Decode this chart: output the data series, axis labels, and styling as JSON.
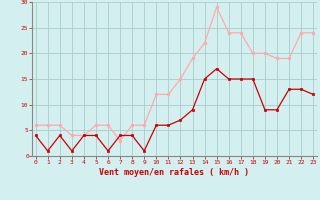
{
  "x": [
    0,
    1,
    2,
    3,
    4,
    5,
    6,
    7,
    8,
    9,
    10,
    11,
    12,
    13,
    14,
    15,
    16,
    17,
    18,
    19,
    20,
    21,
    22,
    23
  ],
  "wind_avg": [
    4,
    1,
    4,
    1,
    4,
    4,
    1,
    4,
    4,
    1,
    6,
    6,
    7,
    9,
    15,
    17,
    15,
    15,
    15,
    9,
    9,
    13,
    13,
    12
  ],
  "wind_gust": [
    6,
    6,
    6,
    4,
    4,
    6,
    6,
    3,
    6,
    6,
    12,
    12,
    15,
    19,
    22,
    29,
    24,
    24,
    20,
    20,
    19,
    19,
    24,
    24
  ],
  "avg_color": "#cc0000",
  "gust_color": "#ffaaaa",
  "bg_color": "#d4efef",
  "grid_color": "#aacccc",
  "xlabel": "Vent moyen/en rafales ( km/h )",
  "xlabel_color": "#cc0000",
  "tick_color": "#cc0000",
  "spine_color": "#888888",
  "ylim": [
    0,
    30
  ],
  "yticks": [
    0,
    5,
    10,
    15,
    20,
    25,
    30
  ],
  "xticks": [
    0,
    1,
    2,
    3,
    4,
    5,
    6,
    7,
    8,
    9,
    10,
    11,
    12,
    13,
    14,
    15,
    16,
    17,
    18,
    19,
    20,
    21,
    22,
    23
  ]
}
